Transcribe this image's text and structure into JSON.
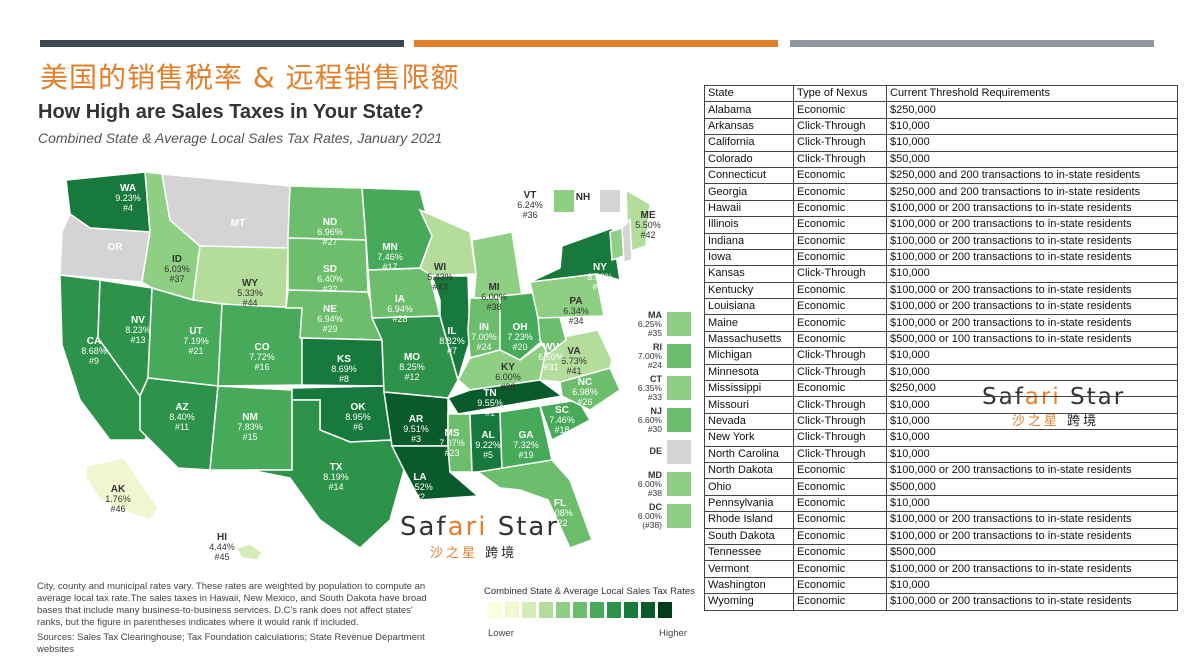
{
  "title_cn": "美国的销售税率 & 远程销售限额",
  "map": {
    "title": "How High are Sales Taxes in Your State?",
    "subtitle": "Combined State & Average Local Sales Tax Rates, January 2021",
    "states": [
      {
        "abbr": "WA",
        "rate": "9.23%",
        "rank": "#4",
        "level": 8
      },
      {
        "abbr": "OR",
        "rate": "",
        "rank": "",
        "level": 0
      },
      {
        "abbr": "CA",
        "rate": "8.68%",
        "rank": "#9",
        "level": 7
      },
      {
        "abbr": "NV",
        "rate": "8.23%",
        "rank": "#13",
        "level": 7
      },
      {
        "abbr": "ID",
        "rate": "6.03%",
        "rank": "#37",
        "level": 4
      },
      {
        "abbr": "MT",
        "rate": "",
        "rank": "",
        "level": 0
      },
      {
        "abbr": "WY",
        "rate": "5.33%",
        "rank": "#44",
        "level": 3
      },
      {
        "abbr": "UT",
        "rate": "7.19%",
        "rank": "#21",
        "level": 6
      },
      {
        "abbr": "AZ",
        "rate": "8.40%",
        "rank": "#11",
        "level": 7
      },
      {
        "abbr": "CO",
        "rate": "7.72%",
        "rank": "#16",
        "level": 6
      },
      {
        "abbr": "NM",
        "rate": "7.83%",
        "rank": "#15",
        "level": 6
      },
      {
        "abbr": "ND",
        "rate": "6.96%",
        "rank": "#27",
        "level": 5
      },
      {
        "abbr": "SD",
        "rate": "6.40%",
        "rank": "#32",
        "level": 5
      },
      {
        "abbr": "NE",
        "rate": "6.94%",
        "rank": "#29",
        "level": 5
      },
      {
        "abbr": "KS",
        "rate": "8.69%",
        "rank": "#8",
        "level": 8
      },
      {
        "abbr": "OK",
        "rate": "8.95%",
        "rank": "#6",
        "level": 8
      },
      {
        "abbr": "TX",
        "rate": "8.19%",
        "rank": "#14",
        "level": 7
      },
      {
        "abbr": "MN",
        "rate": "7.46%",
        "rank": "#17",
        "level": 6
      },
      {
        "abbr": "IA",
        "rate": "6.94%",
        "rank": "#28",
        "level": 5
      },
      {
        "abbr": "MO",
        "rate": "8.25%",
        "rank": "#12",
        "level": 7
      },
      {
        "abbr": "AR",
        "rate": "9.51%",
        "rank": "#3",
        "level": 9
      },
      {
        "abbr": "LA",
        "rate": "9.52%",
        "rank": "#2",
        "level": 9
      },
      {
        "abbr": "WI",
        "rate": "5.43%",
        "rank": "#43",
        "level": 3
      },
      {
        "abbr": "IL",
        "rate": "8.82%",
        "rank": "#7",
        "level": 8
      },
      {
        "abbr": "MI",
        "rate": "6.00%",
        "rank": "#38",
        "level": 4
      },
      {
        "abbr": "IN",
        "rate": "7.00%",
        "rank": "#24",
        "level": 5
      },
      {
        "abbr": "OH",
        "rate": "7.23%",
        "rank": "#20",
        "level": 6
      },
      {
        "abbr": "KY",
        "rate": "6.00%",
        "rank": "#38",
        "level": 4
      },
      {
        "abbr": "TN",
        "rate": "9.55%",
        "rank": "#1",
        "level": 9
      },
      {
        "abbr": "MS",
        "rate": "7.07%",
        "rank": "#23",
        "level": 5
      },
      {
        "abbr": "AL",
        "rate": "9.22%",
        "rank": "#5",
        "level": 8
      },
      {
        "abbr": "GA",
        "rate": "7.32%",
        "rank": "#19",
        "level": 6
      },
      {
        "abbr": "FL",
        "rate": "7.08%",
        "rank": "#22",
        "level": 5
      },
      {
        "abbr": "SC",
        "rate": "7.46%",
        "rank": "#18",
        "level": 6
      },
      {
        "abbr": "NC",
        "rate": "6.98%",
        "rank": "#26",
        "level": 5
      },
      {
        "abbr": "VA",
        "rate": "5.73%",
        "rank": "#41",
        "level": 3
      },
      {
        "abbr": "WV",
        "rate": "6.50%",
        "rank": "#31",
        "level": 5
      },
      {
        "abbr": "PA",
        "rate": "6.34%",
        "rank": "#34",
        "level": 4
      },
      {
        "abbr": "NY",
        "rate": "8.52%",
        "rank": "#10",
        "level": 8
      },
      {
        "abbr": "ME",
        "rate": "5.50%",
        "rank": "#42",
        "level": 3
      },
      {
        "abbr": "VT",
        "rate": "6.24%",
        "rank": "#36",
        "level": 4
      },
      {
        "abbr": "NH",
        "rate": "",
        "rank": "",
        "level": 0
      },
      {
        "abbr": "AK",
        "rate": "1.76%",
        "rank": "#46",
        "level": 1
      },
      {
        "abbr": "HI",
        "rate": "4.44%",
        "rank": "#45",
        "level": 2
      }
    ],
    "small_states": [
      {
        "abbr": "MA",
        "rate": "6.25%",
        "rank": "#35",
        "level": 4
      },
      {
        "abbr": "RI",
        "rate": "7.00%",
        "rank": "#24",
        "level": 5
      },
      {
        "abbr": "CT",
        "rate": "6.35%",
        "rank": "#33",
        "level": 4
      },
      {
        "abbr": "NJ",
        "rate": "6.60%",
        "rank": "#30",
        "level": 5
      },
      {
        "abbr": "DE",
        "rate": "",
        "rank": "",
        "level": 0
      },
      {
        "abbr": "MD",
        "rate": "6.00%",
        "rank": "#38",
        "level": 4
      },
      {
        "abbr": "DC",
        "rate": "6.00%",
        "rank": "(#38)",
        "level": 4
      }
    ],
    "footnote": "City, county and municipal rates vary. These rates are weighted by population to compute an average local tax rate.The sales taxes in Hawaii, New Mexico, and South Dakota have broad bases that include many business-to-business services. D.C's rank does not affect states' ranks, but the figure in parentheses indicates where it would rank if included.",
    "sources": "Sources: Sales Tax Clearinghouse; Tax Foundation calculations; State Revenue Department websites",
    "legend": {
      "title": "Combined State & Average Local Sales Tax Rates",
      "low": "Lower",
      "high": "Higher",
      "colors": [
        "#fdfde0",
        "#eef7cf",
        "#d4ecb6",
        "#b4dd9b",
        "#8fcf83",
        "#6cbe6d",
        "#47aa5a",
        "#2d924a",
        "#17793c",
        "#0a5b2c",
        "#033d1d"
      ]
    },
    "no_tax_color": "#d4d4d4"
  },
  "logo": {
    "en_a": "Saf",
    "en_b": "ari",
    "en_c": " Star",
    "cn_a": "沙之星",
    "cn_b": " 跨境"
  },
  "nexus_table": {
    "headers": [
      "State",
      "Type of Nexus",
      "Current Threshold Requirements"
    ],
    "rows": [
      [
        "Alabama",
        "Economic",
        "$250,000"
      ],
      [
        "Arkansas",
        "Click-Through",
        "$10,000"
      ],
      [
        "California",
        "Click-Through",
        "$10,000"
      ],
      [
        "Colorado",
        "Click-Through",
        "$50,000"
      ],
      [
        "Connecticut",
        "Economic",
        "$250,000 and 200 transactions to in-state residents"
      ],
      [
        "Georgia",
        "Economic",
        "$250,000 and 200 transactions to in-state residents"
      ],
      [
        "Hawaii",
        "Economic",
        "$100,000 or 200 transactions to in-state residents"
      ],
      [
        "Illinois",
        "Economic",
        "$100,000 or 200 transactions to in-state residents"
      ],
      [
        "Indiana",
        "Economic",
        "$100,000 or 200 transactions to in-state residents"
      ],
      [
        "Iowa",
        "Economic",
        "$100,000 or 200 transactions to in-state residents"
      ],
      [
        "Kansas",
        "Click-Through",
        "$10,000"
      ],
      [
        "Kentucky",
        "Economic",
        "$100,000 or 200 transactions to in-state residents"
      ],
      [
        "Louisiana",
        "Economic",
        "$100,000 or 200 transactions to in-state residents"
      ],
      [
        "Maine",
        "Economic",
        "$100,000 or 200 transactions to in-state residents"
      ],
      [
        "Massachusetts",
        "Economic",
        "$500,000 or 100 transactions to in-state residents"
      ],
      [
        "Michigan",
        "Click-Through",
        "$10,000"
      ],
      [
        "Minnesota",
        "Click-Through",
        "$10,000"
      ],
      [
        "Mississippi",
        "Economic",
        "$250,000"
      ],
      [
        "Missouri",
        "Click-Through",
        "$10,000"
      ],
      [
        "Nevada",
        "Click-Through",
        "$10,000"
      ],
      [
        "New York",
        "Click-Through",
        "$10,000"
      ],
      [
        "North Carolina",
        "Click-Through",
        "$10,000"
      ],
      [
        "North Dakota",
        "Economic",
        "$100,000 or 200 transactions to in-state residents"
      ],
      [
        "Ohio",
        "Economic",
        "$500,000"
      ],
      [
        "Pennsylvania",
        "Economic",
        "$10,000"
      ],
      [
        "Rhode Island",
        "Economic",
        "$100,000 or 200 transactions to in-state residents"
      ],
      [
        "South Dakota",
        "Economic",
        "$100,000 or 200 transactions to in-state residents"
      ],
      [
        "Tennessee",
        "Economic",
        "$500,000"
      ],
      [
        "Vermont",
        "Economic",
        "$100,000 or 200 transactions to in-state residents"
      ],
      [
        "Washington",
        "Economic",
        "$10,000"
      ],
      [
        "Wyoming",
        "Economic",
        "$100,000 or 200 transactions to in-state residents"
      ]
    ]
  }
}
